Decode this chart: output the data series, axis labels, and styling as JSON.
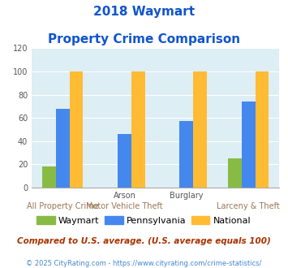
{
  "title_line1": "2018 Waymart",
  "title_line2": "Property Crime Comparison",
  "label_row1": [
    "",
    "Arson",
    "Burglary",
    ""
  ],
  "label_row2": [
    "All Property Crime",
    "Motor Vehicle Theft",
    "",
    "Larceny & Theft"
  ],
  "waymart": [
    18,
    0,
    0,
    25
  ],
  "pennsylvania": [
    68,
    46,
    57,
    74
  ],
  "national": [
    100,
    100,
    100,
    100
  ],
  "waymart_color": "#88bb44",
  "pennsylvania_color": "#4488ee",
  "national_color": "#ffbb33",
  "bg_color": "#ddeef5",
  "ylim": [
    0,
    120
  ],
  "yticks": [
    0,
    20,
    40,
    60,
    80,
    100,
    120
  ],
  "title_color": "#1155cc",
  "row1_color": "#555555",
  "row2_color": "#997755",
  "footer_text": "Compared to U.S. average. (U.S. average equals 100)",
  "footer_color": "#aa3300",
  "credit_text": "© 2025 CityRating.com - https://www.cityrating.com/crime-statistics/",
  "credit_color": "#4488cc"
}
